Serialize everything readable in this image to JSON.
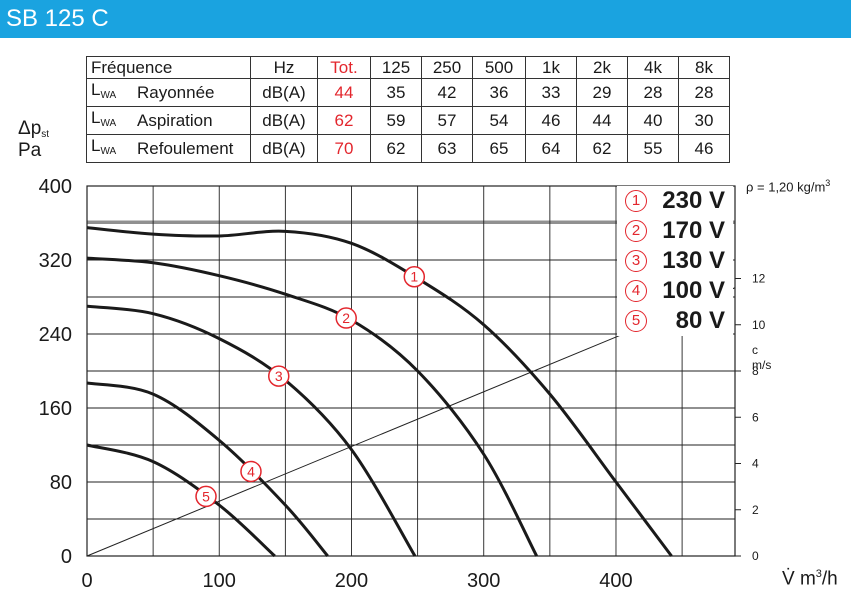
{
  "title": "SB 125 C",
  "table": {
    "header": [
      "Fréquence",
      "Hz",
      "Tot.",
      "125",
      "250",
      "500",
      "1k",
      "2k",
      "4k",
      "8k"
    ],
    "rows": [
      {
        "lwa": "L",
        "lwa_sub": "WA",
        "label": "Rayonnée",
        "unit": "dB(A)",
        "tot": "44",
        "values": [
          "35",
          "42",
          "36",
          "33",
          "29",
          "28",
          "28"
        ]
      },
      {
        "lwa": "L",
        "lwa_sub": "WA",
        "label": "Aspiration",
        "unit": "dB(A)",
        "tot": "62",
        "values": [
          "59",
          "57",
          "54",
          "46",
          "44",
          "40",
          "30"
        ]
      },
      {
        "lwa": "L",
        "lwa_sub": "WA",
        "label": "Refoulement",
        "unit": "dB(A)",
        "tot": "70",
        "values": [
          "62",
          "63",
          "65",
          "64",
          "62",
          "55",
          "46"
        ]
      }
    ]
  },
  "y_label_line1": "Δp",
  "y_label_sub": "st",
  "y_label_line2": "Pa",
  "density": "ρ = 1,20 kg/m",
  "density_sup": "3",
  "c_unit_1": "c",
  "c_unit_2": "m/s",
  "x_unit": "V̇ m",
  "x_unit_sup": "3",
  "x_unit_tail": "/h",
  "colors": {
    "accent": "#1aa3e0",
    "red": "#e3262d",
    "curve": "#1a1a1a"
  },
  "chart_data": {
    "type": "line",
    "xlabel": "V̇ m3/h",
    "ylabel": "Δpst Pa",
    "xlim": [
      0,
      490
    ],
    "ylim": [
      0,
      400
    ],
    "x_ticks": [
      0,
      100,
      200,
      300,
      400
    ],
    "y_ticks": [
      0,
      80,
      160,
      240,
      320,
      400
    ],
    "grid": true,
    "secondary_axis": {
      "label": "c m/s",
      "ticks": [
        0,
        2,
        4,
        6,
        8,
        10,
        12
      ],
      "range": [
        0,
        16
      ]
    },
    "legend_position": "top-right",
    "series": [
      {
        "name": "230 V",
        "marker": "1",
        "x": [
          0,
          50,
          100,
          150,
          200,
          250,
          300,
          350,
          400,
          442
        ],
        "y": [
          355,
          348,
          346,
          351,
          338,
          300,
          250,
          175,
          80,
          0
        ]
      },
      {
        "name": "170 V",
        "marker": "2",
        "x": [
          0,
          50,
          100,
          150,
          200,
          250,
          300,
          340
        ],
        "y": [
          322,
          317,
          303,
          283,
          255,
          200,
          110,
          0
        ]
      },
      {
        "name": "130 V",
        "marker": "3",
        "x": [
          0,
          50,
          100,
          150,
          200,
          248
        ],
        "y": [
          270,
          262,
          235,
          190,
          115,
          0
        ]
      },
      {
        "name": "100 V",
        "marker": "4",
        "x": [
          0,
          50,
          100,
          150,
          182
        ],
        "y": [
          187,
          175,
          125,
          55,
          0
        ]
      },
      {
        "name": "80 V",
        "marker": "5",
        "x": [
          0,
          50,
          100,
          142
        ],
        "y": [
          120,
          102,
          55,
          0
        ]
      }
    ],
    "velocity_line": {
      "x": [
        0,
        490
      ],
      "c": [
        0,
        11.6
      ]
    }
  }
}
